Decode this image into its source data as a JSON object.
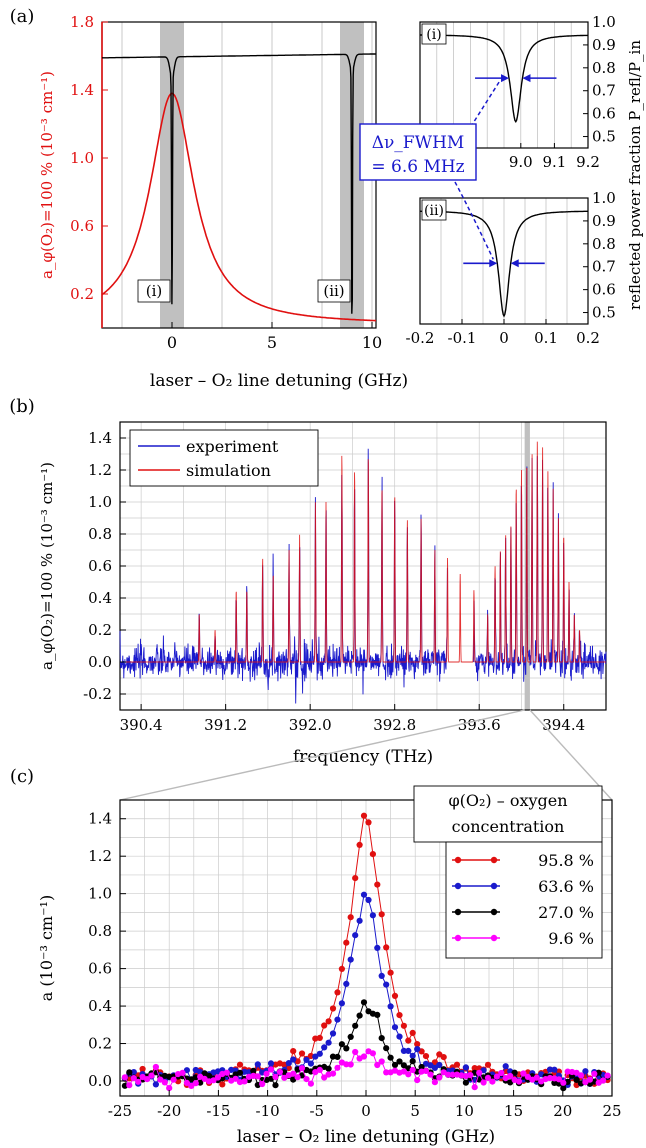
{
  "panels": {
    "a": {
      "label": "(a)"
    },
    "b": {
      "label": "(b)"
    },
    "c": {
      "label": "(c)"
    }
  },
  "colors": {
    "red": "#e01010",
    "blue": "#1a1acc",
    "black": "#000000",
    "magenta": "#ff00ff",
    "band": "#c0c0c0"
  },
  "chart_data": [
    {
      "panel": "a",
      "type": "line",
      "title": "",
      "xlabel": "laser – O₂ line detuning (GHz)",
      "ylabel_left": "a_φ(O₂)=100 % (10⁻³ cm⁻¹)",
      "ylabel_right": "reflected power fraction P_refl/P_in",
      "xlim": [
        -3.5,
        10.2
      ],
      "ylim": [
        0,
        1.8
      ],
      "x_ticks": [
        "0",
        "5",
        "10"
      ],
      "y_ticks": [
        "0.2",
        "0.6",
        "1.0",
        "1.4",
        "1.8"
      ],
      "annotations": [
        "(i)",
        "(ii)"
      ],
      "shaded_regions_ghz": [
        [
          -0.6,
          0.6
        ],
        [
          8.4,
          9.6
        ]
      ],
      "series": [
        {
          "name": "",
          "color": "red",
          "x": [
            -3.5,
            -3,
            -2.5,
            -2,
            -1.5,
            -1,
            -0.5,
            0,
            0.5,
            1,
            1.5,
            2,
            2.5,
            3,
            4,
            5,
            6,
            7,
            8,
            9,
            10
          ],
          "values": [
            0.22,
            0.26,
            0.32,
            0.42,
            0.58,
            0.85,
            1.2,
            1.38,
            1.2,
            0.85,
            0.58,
            0.42,
            0.32,
            0.26,
            0.17,
            0.12,
            0.09,
            0.07,
            0.06,
            0.05,
            0.045
          ]
        },
        {
          "name": "",
          "color": "black",
          "x": [
            -3.5,
            -0.3,
            0,
            0.3,
            8.6,
            9,
            9.4,
            10.2
          ],
          "values": [
            1.6,
            1.6,
            0.0,
            1.55,
            1.6,
            0.0,
            1.55,
            1.6
          ]
        }
      ]
    },
    {
      "panel": "a-i",
      "type": "line",
      "title": "",
      "xlim": [
        8.7,
        9.2
      ],
      "ylim": [
        0.45,
        1.0
      ],
      "x_ticks": [
        "9.0",
        "9.1",
        "9.2"
      ],
      "y_ticks": [
        "0.5",
        "0.6",
        "0.7",
        "0.8",
        "0.9",
        "1.0"
      ],
      "label": "(i)",
      "series": [
        {
          "name": "",
          "color": "black",
          "x": [
            8.7,
            8.85,
            8.92,
            8.95,
            8.97,
            8.985,
            9.0,
            9.02,
            9.05,
            9.1,
            9.2
          ],
          "values": [
            0.95,
            0.94,
            0.9,
            0.82,
            0.68,
            0.57,
            0.63,
            0.8,
            0.9,
            0.93,
            0.94
          ]
        }
      ]
    },
    {
      "panel": "a-ii",
      "type": "line",
      "title": "",
      "xlim": [
        -0.2,
        0.2
      ],
      "ylim": [
        0.45,
        1.0
      ],
      "x_ticks": [
        "-0.2",
        "-0.1",
        "0",
        "0.1",
        "0.2"
      ],
      "y_ticks": [
        "0.5",
        "0.6",
        "0.7",
        "0.8",
        "0.9",
        "1.0"
      ],
      "label": "(ii)",
      "series": [
        {
          "name": "",
          "color": "black",
          "x": [
            -0.2,
            -0.1,
            -0.05,
            -0.02,
            -0.01,
            0,
            0.01,
            0.02,
            0.05,
            0.1,
            0.2
          ],
          "values": [
            0.93,
            0.92,
            0.88,
            0.78,
            0.65,
            0.49,
            0.62,
            0.76,
            0.88,
            0.92,
            0.94
          ]
        }
      ]
    },
    {
      "panel": "b",
      "type": "line",
      "title": "",
      "xlabel": "frequency (THz)",
      "ylabel": "a_φ(O₂)=100 % (10⁻³ cm⁻¹)",
      "xlim": [
        390.2,
        394.8
      ],
      "ylim": [
        -0.3,
        1.5
      ],
      "x_ticks": [
        "390.4",
        "391.2",
        "392.0",
        "392.8",
        "393.6",
        "394.4"
      ],
      "y_ticks": [
        "-0.2",
        "0.0",
        "0.2",
        "0.4",
        "0.6",
        "0.8",
        "1.0",
        "1.2",
        "1.4"
      ],
      "legend": "top-left",
      "series": [
        {
          "name": "experiment",
          "color": "blue"
        },
        {
          "name": "simulation",
          "color": "red"
        }
      ],
      "peaks_thz": [
        390.95,
        391.1,
        391.3,
        391.4,
        391.55,
        391.65,
        391.8,
        391.9,
        392.05,
        392.15,
        392.3,
        392.42,
        392.55,
        392.68,
        392.8,
        392.92,
        393.05,
        393.18,
        393.3,
        393.42,
        393.55,
        393.68,
        393.75,
        393.8,
        393.85,
        393.9,
        393.95,
        394.0,
        394.05,
        394.1,
        394.15,
        394.2,
        394.25,
        394.3,
        394.35,
        394.4,
        394.45,
        394.5,
        394.55
      ],
      "peak_values": [
        0.3,
        0.2,
        0.45,
        0.45,
        0.65,
        0.55,
        0.7,
        0.8,
        1.0,
        1.0,
        1.3,
        1.2,
        1.3,
        1.1,
        1.05,
        0.9,
        0.9,
        0.7,
        0.65,
        0.55,
        0.45,
        0.3,
        0.6,
        0.7,
        0.8,
        0.85,
        1.1,
        1.2,
        1.25,
        1.3,
        1.4,
        1.35,
        1.2,
        1.1,
        0.9,
        0.8,
        0.5,
        0.3,
        0.2
      ],
      "highlight_thz": [
        394.03,
        394.08
      ]
    },
    {
      "panel": "c",
      "type": "scatter",
      "title": "",
      "xlabel": "laser – O₂ line detuning (GHz)",
      "ylabel": "a (10⁻³ cm⁻¹)",
      "xlim": [
        -25,
        25
      ],
      "ylim": [
        -0.08,
        1.5
      ],
      "x_ticks": [
        "-25",
        "-20",
        "-15",
        "-10",
        "-5",
        "0",
        "5",
        "10",
        "15",
        "20",
        "25"
      ],
      "y_ticks": [
        "0.0",
        "0.2",
        "0.4",
        "0.6",
        "0.8",
        "1.0",
        "1.2",
        "1.4"
      ],
      "legend": "top-right",
      "legend_title": [
        "φ(O₂) – oxygen",
        "concentration"
      ],
      "series": [
        {
          "name": "95.8 %",
          "color": "red",
          "peak": 1.39
        },
        {
          "name": "63.6 %",
          "color": "blue",
          "peak": 0.98
        },
        {
          "name": "27.0 %",
          "color": "black",
          "peak": 0.38
        },
        {
          "name": "9.6 %",
          "color": "magenta",
          "peak": 0.14
        }
      ],
      "hwhm_ghz": 2.0
    }
  ],
  "text": {
    "a_xlabel": "laser – O₂ line detuning (GHz)",
    "a_ylabel": "a_φ(O₂)=100 % (10⁻³ cm⁻¹)",
    "a_ylabel_right": "reflected power fraction P_refl/P_in",
    "fwhm_line1": "Δν_FWHM",
    "fwhm_line2": "= 6.6 MHz",
    "mark_i": "(i)",
    "mark_ii": "(ii)",
    "b_xlabel": "frequency (THz)",
    "b_ylabel": "a_φ(O₂)=100 % (10⁻³ cm⁻¹)",
    "c_xlabel": "laser – O₂ line detuning (GHz)",
    "c_ylabel": "a (10⁻³ cm⁻¹)",
    "c_legend_title_1": "φ(O₂) – oxygen",
    "c_legend_title_2": "concentration",
    "b_legend_exp": "experiment",
    "b_legend_sim": "simulation"
  }
}
